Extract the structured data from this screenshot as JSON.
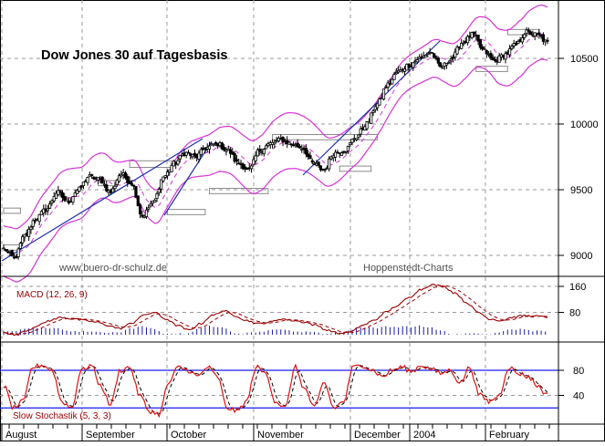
{
  "chart_data": [
    {
      "type": "candlestick",
      "title": "Dow Jones 30 auf Tagesbasis",
      "watermark_left": "www.buero-dr-schulz.de",
      "watermark_right": "Hoppenstedt-Charts",
      "y_ticks": [
        9000,
        9500,
        10000,
        10500
      ],
      "ylim": [
        8900,
        10950
      ],
      "x_month_labels": [
        "August",
        "September",
        "October",
        "November",
        "December",
        "2004",
        "February"
      ],
      "price_anchors": [
        9050,
        8980,
        9150,
        9280,
        9350,
        9480,
        9410,
        9500,
        9600,
        9580,
        9480,
        9620,
        9550,
        9300,
        9400,
        9600,
        9700,
        9780,
        9750,
        9820,
        9850,
        9800,
        9700,
        9650,
        9800,
        9850,
        9880,
        9850,
        9820,
        9700,
        9650,
        9780,
        9800,
        9900,
        10000,
        10150,
        10300,
        10400,
        10450,
        10500,
        10550,
        10430,
        10500,
        10620,
        10680,
        10560,
        10480,
        10530,
        10600,
        10700,
        10680,
        10620
      ],
      "support_boxes": [
        {
          "from": 0,
          "to": 8,
          "low": 9320,
          "high": 9360
        },
        {
          "from": 0,
          "to": 8,
          "low": 9040,
          "high": 9080
        },
        {
          "from": 45,
          "to": 53,
          "low": 9530,
          "high": 9570
        },
        {
          "from": 60,
          "to": 80,
          "low": 9670,
          "high": 9720
        },
        {
          "from": 78,
          "to": 96,
          "low": 9310,
          "high": 9350
        },
        {
          "from": 98,
          "to": 126,
          "low": 9470,
          "high": 9510
        },
        {
          "from": 128,
          "to": 178,
          "low": 9880,
          "high": 9920
        },
        {
          "from": 160,
          "to": 175,
          "low": 9640,
          "high": 9680
        },
        {
          "from": 225,
          "to": 240,
          "low": 10400,
          "high": 10440
        },
        {
          "from": 240,
          "to": 255,
          "low": 10680,
          "high": 10720
        }
      ]
    },
    {
      "type": "line",
      "title": "MACD (12, 26, 9)",
      "y_ticks": [
        80,
        160
      ],
      "ylim": [
        -40,
        180
      ],
      "macd_anchors": [
        20,
        10,
        25,
        40,
        55,
        65,
        60,
        55,
        50,
        40,
        30,
        45,
        70,
        80,
        60,
        40,
        25,
        45,
        70,
        85,
        70,
        55,
        45,
        50,
        60,
        55,
        50,
        40,
        25,
        15,
        20,
        40,
        55,
        80,
        100,
        125,
        150,
        165,
        160,
        140,
        110,
        80,
        60,
        55,
        65,
        70,
        68,
        65
      ]
    },
    {
      "type": "line",
      "title": "Slow Stochastik (5, 3, 3)",
      "y_ticks": [
        40,
        80
      ],
      "ylim": [
        0,
        100
      ],
      "reference_lines": [
        20,
        80
      ],
      "stoch_anchors": [
        55,
        20,
        30,
        85,
        88,
        80,
        30,
        20,
        80,
        88,
        55,
        25,
        80,
        85,
        40,
        15,
        10,
        60,
        85,
        80,
        70,
        85,
        70,
        20,
        15,
        30,
        85,
        75,
        30,
        20,
        85,
        50,
        20,
        60,
        20,
        30,
        85,
        88,
        80,
        70,
        80,
        85,
        78,
        88,
        82,
        75,
        80,
        60,
        85,
        40,
        30,
        40,
        85,
        75,
        70,
        55,
        40
      ]
    }
  ]
}
